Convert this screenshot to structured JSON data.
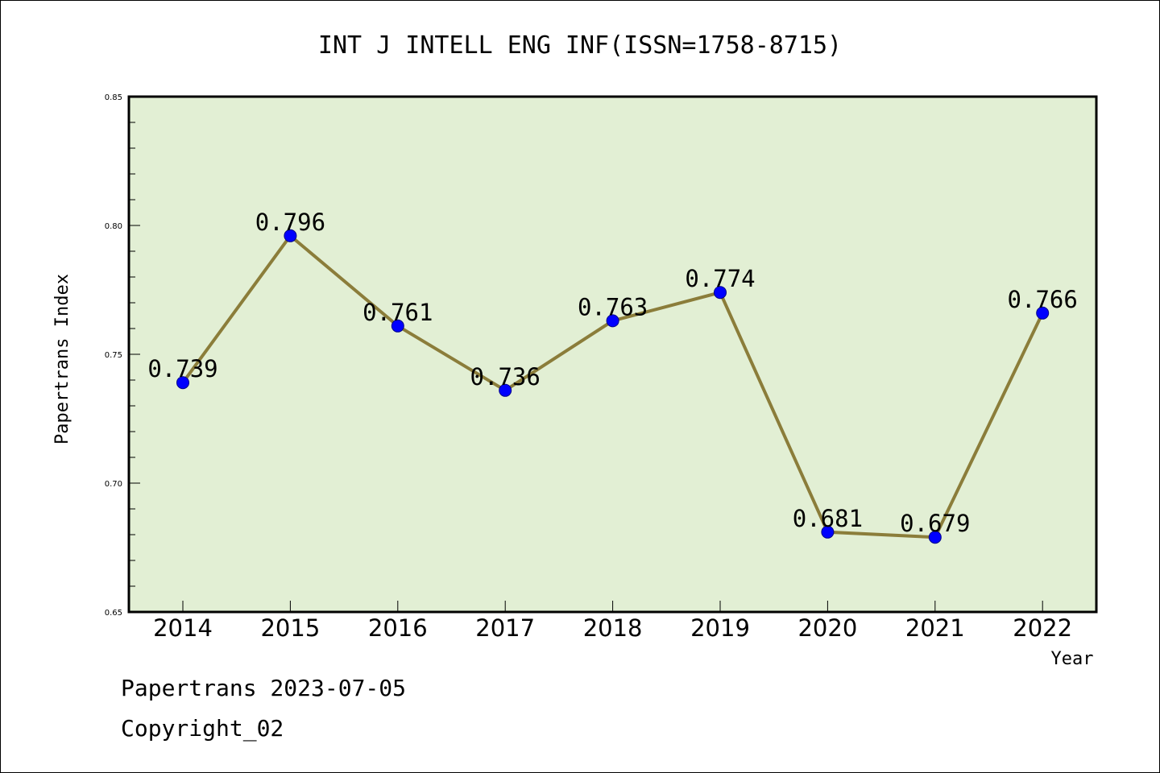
{
  "chart_data": {
    "type": "line",
    "title": "INT J INTELL ENG INF(ISSN=1758-8715)",
    "xlabel": "Year",
    "ylabel": "Papertrans Index",
    "categories": [
      "2014",
      "2015",
      "2016",
      "2017",
      "2018",
      "2019",
      "2020",
      "2021",
      "2022"
    ],
    "series": [
      {
        "values": [
          0.739,
          0.796,
          0.761,
          0.736,
          0.763,
          0.774,
          0.681,
          0.679,
          0.766
        ],
        "labels": [
          "0.739",
          "0.796",
          "0.761",
          "0.736",
          "0.763",
          "0.774",
          "0.681",
          "0.679",
          "0.766"
        ],
        "line_color": "#8b7d3a",
        "marker_color": "#0000ff"
      }
    ],
    "ylim": [
      0.65,
      0.85
    ],
    "yticks": [
      0.65,
      0.7,
      0.75,
      0.8,
      0.85
    ],
    "ytick_labels": [
      "0.65",
      "0.70",
      "0.75",
      "0.80",
      "0.85"
    ],
    "plot_background": "#e2efd4",
    "grid": false
  },
  "footer": {
    "line1": "Papertrans 2023-07-05",
    "line2": "Copyright_02"
  }
}
